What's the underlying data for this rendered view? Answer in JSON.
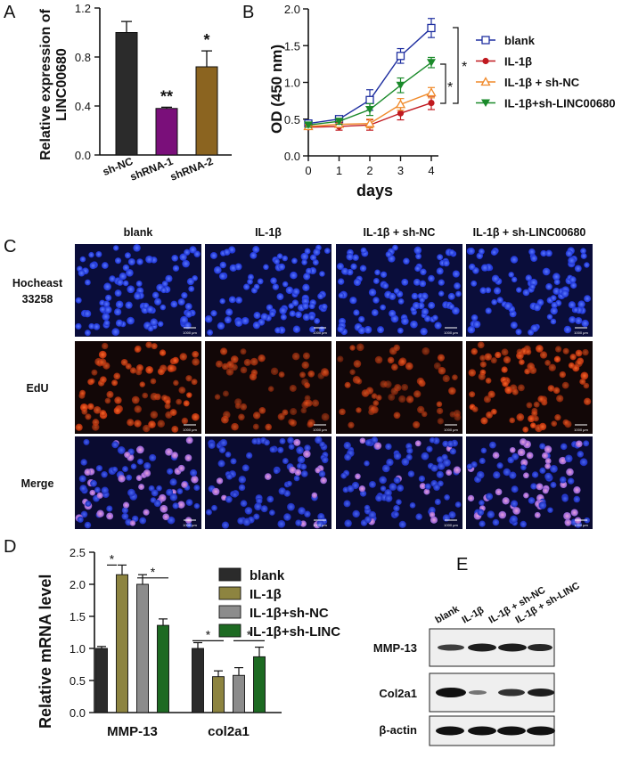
{
  "panels": {
    "A": {
      "letter": "A",
      "ylabel_line1": "Relative expression of",
      "ylabel_line2": "LINC00680",
      "yticks": [
        "0.0",
        "0.4",
        "0.8",
        "1.2"
      ],
      "categories": [
        "sh-NC",
        "shRNA-1",
        "shRNA-2"
      ],
      "significance": [
        "",
        "**",
        "*"
      ]
    },
    "B": {
      "letter": "B",
      "ylabel": "OD (450 nm)",
      "xlabel": "days",
      "xticks": [
        "0",
        "1",
        "2",
        "3",
        "4"
      ],
      "yticks": [
        "0.0",
        "0.5",
        "1.0",
        "1.5",
        "2.0"
      ],
      "legend": [
        "blank",
        "IL-1β",
        "IL-1β + sh-NC",
        "IL-1β+sh-LINC00680"
      ],
      "sig_marks": [
        "*",
        "*"
      ]
    },
    "C": {
      "letter": "C",
      "columns": [
        "blank",
        "IL-1β",
        "IL-1β + sh-NC",
        "IL-1β + sh-LINC00680"
      ],
      "rows": [
        {
          "label1": "Hocheast",
          "label2": "33258"
        },
        {
          "label1": "EdU",
          "label2": ""
        },
        {
          "label1": "Merge",
          "label2": ""
        }
      ],
      "scale_text": "1000 μm"
    },
    "D": {
      "letter": "D",
      "ylabel": "Relative mRNA level",
      "yticks": [
        "0.0",
        "0.5",
        "1.0",
        "1.5",
        "2.0",
        "2.5"
      ],
      "groups": [
        "MMP-13",
        "col2a1"
      ],
      "legend": [
        "blank",
        "IL-1β",
        "IL-1β+sh-NC",
        "IL-1β+sh-LINC"
      ],
      "sig_marks": [
        "*",
        "*",
        "*",
        "*"
      ]
    },
    "E": {
      "letter": "E",
      "lanes": [
        "blank",
        "IL-1β",
        "IL-1β + sh-NC",
        "IL-1β + sh-LINC"
      ],
      "bands": [
        "MMP-13",
        "Col2a1",
        "β-actin"
      ]
    }
  },
  "colors": {
    "black_bar": "#2b2b2b",
    "purple_bar": "#7a0f7a",
    "brown_bar": "#8b6420",
    "blank": "#1f2fa0",
    "il1b": "#c0191f",
    "shnc": "#f08a2a",
    "shlinc": "#1a8a2a",
    "olive": "#8d8440",
    "grey": "#8c8c8c",
    "darkgreen": "#1d6a22"
  },
  "chart_data": [
    {
      "panel": "A",
      "type": "bar",
      "categories": [
        "sh-NC",
        "shRNA-1",
        "shRNA-2"
      ],
      "values": [
        1.0,
        0.38,
        0.72
      ],
      "errors": [
        0.09,
        0.01,
        0.13
      ],
      "ylabel": "Relative expression of LINC00680",
      "ylim": [
        0,
        1.2
      ]
    },
    {
      "panel": "B",
      "type": "line",
      "x": [
        0,
        1,
        2,
        3,
        4
      ],
      "xlabel": "days",
      "ylabel": "OD (450 nm)",
      "ylim": [
        0,
        2.0
      ],
      "series": [
        {
          "name": "blank",
          "values": [
            0.44,
            0.5,
            0.76,
            1.36,
            1.74
          ],
          "errors": [
            0.03,
            0.04,
            0.14,
            0.1,
            0.13
          ]
        },
        {
          "name": "IL-1β",
          "values": [
            0.39,
            0.4,
            0.42,
            0.58,
            0.72
          ],
          "errors": [
            0.03,
            0.05,
            0.07,
            0.09,
            0.09
          ]
        },
        {
          "name": "IL-1β + sh-NC",
          "values": [
            0.4,
            0.43,
            0.44,
            0.7,
            0.86
          ],
          "errors": [
            0.03,
            0.04,
            0.06,
            0.08,
            0.07
          ]
        },
        {
          "name": "IL-1β+sh-LINC00680",
          "values": [
            0.42,
            0.47,
            0.63,
            0.96,
            1.27
          ],
          "errors": [
            0.03,
            0.04,
            0.08,
            0.1,
            0.07
          ]
        }
      ],
      "legend": "right"
    },
    {
      "panel": "D",
      "type": "bar",
      "categories": [
        "MMP-13",
        "col2a1"
      ],
      "ylabel": "Relative mRNA level",
      "ylim": [
        0,
        2.5
      ],
      "series": [
        {
          "name": "blank",
          "values": [
            1.0,
            1.0
          ],
          "errors": [
            0.03,
            0.09
          ]
        },
        {
          "name": "IL-1β",
          "values": [
            2.15,
            0.56
          ],
          "errors": [
            0.15,
            0.09
          ]
        },
        {
          "name": "IL-1β+sh-NC",
          "values": [
            2.0,
            0.58
          ],
          "errors": [
            0.15,
            0.12
          ]
        },
        {
          "name": "IL-1β+sh-LINC",
          "values": [
            1.36,
            0.87
          ],
          "errors": [
            0.1,
            0.15
          ]
        }
      ],
      "legend": "right"
    }
  ]
}
